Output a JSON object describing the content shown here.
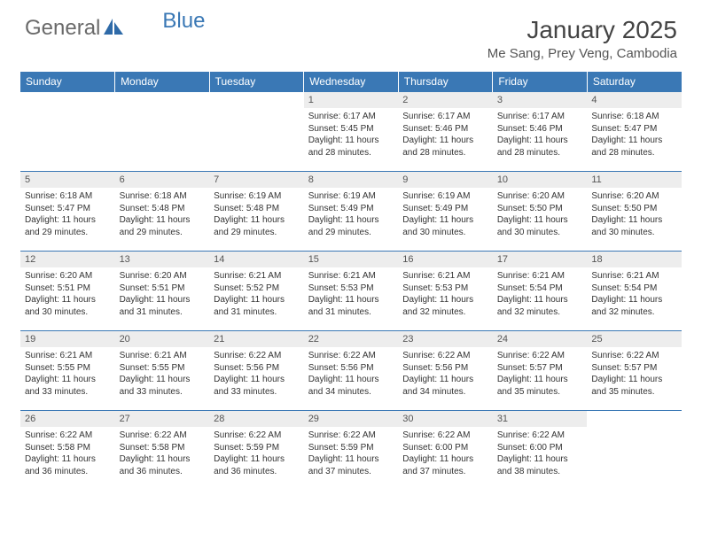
{
  "brand": {
    "part1": "General",
    "part2": "Blue"
  },
  "title": "January 2025",
  "location": "Me Sang, Prey Veng, Cambodia",
  "header_bg": "#3a78b5",
  "header_fg": "#ffffff",
  "border_color": "#3a78b5",
  "daynum_bg": "#ededed",
  "dayheaders": [
    "Sunday",
    "Monday",
    "Tuesday",
    "Wednesday",
    "Thursday",
    "Friday",
    "Saturday"
  ],
  "weeks": [
    [
      {
        "empty": true
      },
      {
        "empty": true
      },
      {
        "empty": true
      },
      {
        "day": "1",
        "sunrise": "6:17 AM",
        "sunset": "5:45 PM",
        "daylight": "11 hours and 28 minutes."
      },
      {
        "day": "2",
        "sunrise": "6:17 AM",
        "sunset": "5:46 PM",
        "daylight": "11 hours and 28 minutes."
      },
      {
        "day": "3",
        "sunrise": "6:17 AM",
        "sunset": "5:46 PM",
        "daylight": "11 hours and 28 minutes."
      },
      {
        "day": "4",
        "sunrise": "6:18 AM",
        "sunset": "5:47 PM",
        "daylight": "11 hours and 28 minutes."
      }
    ],
    [
      {
        "day": "5",
        "sunrise": "6:18 AM",
        "sunset": "5:47 PM",
        "daylight": "11 hours and 29 minutes."
      },
      {
        "day": "6",
        "sunrise": "6:18 AM",
        "sunset": "5:48 PM",
        "daylight": "11 hours and 29 minutes."
      },
      {
        "day": "7",
        "sunrise": "6:19 AM",
        "sunset": "5:48 PM",
        "daylight": "11 hours and 29 minutes."
      },
      {
        "day": "8",
        "sunrise": "6:19 AM",
        "sunset": "5:49 PM",
        "daylight": "11 hours and 29 minutes."
      },
      {
        "day": "9",
        "sunrise": "6:19 AM",
        "sunset": "5:49 PM",
        "daylight": "11 hours and 30 minutes."
      },
      {
        "day": "10",
        "sunrise": "6:20 AM",
        "sunset": "5:50 PM",
        "daylight": "11 hours and 30 minutes."
      },
      {
        "day": "11",
        "sunrise": "6:20 AM",
        "sunset": "5:50 PM",
        "daylight": "11 hours and 30 minutes."
      }
    ],
    [
      {
        "day": "12",
        "sunrise": "6:20 AM",
        "sunset": "5:51 PM",
        "daylight": "11 hours and 30 minutes."
      },
      {
        "day": "13",
        "sunrise": "6:20 AM",
        "sunset": "5:51 PM",
        "daylight": "11 hours and 31 minutes."
      },
      {
        "day": "14",
        "sunrise": "6:21 AM",
        "sunset": "5:52 PM",
        "daylight": "11 hours and 31 minutes."
      },
      {
        "day": "15",
        "sunrise": "6:21 AM",
        "sunset": "5:53 PM",
        "daylight": "11 hours and 31 minutes."
      },
      {
        "day": "16",
        "sunrise": "6:21 AM",
        "sunset": "5:53 PM",
        "daylight": "11 hours and 32 minutes."
      },
      {
        "day": "17",
        "sunrise": "6:21 AM",
        "sunset": "5:54 PM",
        "daylight": "11 hours and 32 minutes."
      },
      {
        "day": "18",
        "sunrise": "6:21 AM",
        "sunset": "5:54 PM",
        "daylight": "11 hours and 32 minutes."
      }
    ],
    [
      {
        "day": "19",
        "sunrise": "6:21 AM",
        "sunset": "5:55 PM",
        "daylight": "11 hours and 33 minutes."
      },
      {
        "day": "20",
        "sunrise": "6:21 AM",
        "sunset": "5:55 PM",
        "daylight": "11 hours and 33 minutes."
      },
      {
        "day": "21",
        "sunrise": "6:22 AM",
        "sunset": "5:56 PM",
        "daylight": "11 hours and 33 minutes."
      },
      {
        "day": "22",
        "sunrise": "6:22 AM",
        "sunset": "5:56 PM",
        "daylight": "11 hours and 34 minutes."
      },
      {
        "day": "23",
        "sunrise": "6:22 AM",
        "sunset": "5:56 PM",
        "daylight": "11 hours and 34 minutes."
      },
      {
        "day": "24",
        "sunrise": "6:22 AM",
        "sunset": "5:57 PM",
        "daylight": "11 hours and 35 minutes."
      },
      {
        "day": "25",
        "sunrise": "6:22 AM",
        "sunset": "5:57 PM",
        "daylight": "11 hours and 35 minutes."
      }
    ],
    [
      {
        "day": "26",
        "sunrise": "6:22 AM",
        "sunset": "5:58 PM",
        "daylight": "11 hours and 36 minutes."
      },
      {
        "day": "27",
        "sunrise": "6:22 AM",
        "sunset": "5:58 PM",
        "daylight": "11 hours and 36 minutes."
      },
      {
        "day": "28",
        "sunrise": "6:22 AM",
        "sunset": "5:59 PM",
        "daylight": "11 hours and 36 minutes."
      },
      {
        "day": "29",
        "sunrise": "6:22 AM",
        "sunset": "5:59 PM",
        "daylight": "11 hours and 37 minutes."
      },
      {
        "day": "30",
        "sunrise": "6:22 AM",
        "sunset": "6:00 PM",
        "daylight": "11 hours and 37 minutes."
      },
      {
        "day": "31",
        "sunrise": "6:22 AM",
        "sunset": "6:00 PM",
        "daylight": "11 hours and 38 minutes."
      },
      {
        "empty": true
      }
    ]
  ],
  "labels": {
    "sunrise_prefix": "Sunrise: ",
    "sunset_prefix": "Sunset: ",
    "daylight_prefix": "Daylight: "
  }
}
